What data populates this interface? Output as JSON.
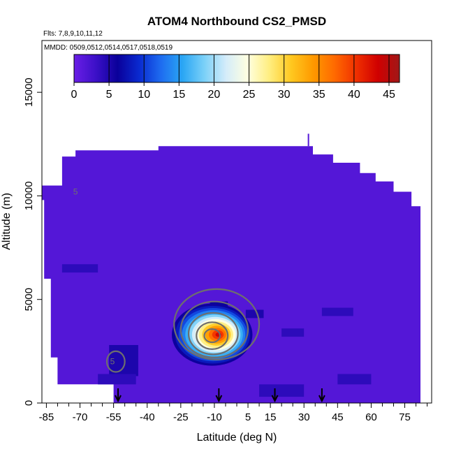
{
  "chart_data": {
    "type": "heatmap",
    "title": "ATOM4 Northbound CS2_PMSD",
    "notes": [
      "Flts: 7,8,9,10,11,12",
      "MMDD: 0509,0512,0514,0517,0518,0519"
    ],
    "xlabel": "Latitude (deg N)",
    "ylabel": "Altitude (m)",
    "xlim": [
      -87,
      87
    ],
    "ylim": [
      0,
      17500
    ],
    "x_ticks": [
      -85,
      -70,
      -55,
      -40,
      -25,
      -10,
      5,
      15,
      30,
      45,
      60,
      75
    ],
    "x_tick_labels": [
      "-85",
      "-70",
      "-55",
      "-40",
      "-25",
      "-10",
      "5",
      "15",
      "30",
      "45",
      "60",
      "75"
    ],
    "x_minor_ticks": [
      -80,
      -75,
      -65,
      -60,
      -50,
      -45,
      -35,
      -30,
      -20,
      -15,
      -5,
      0,
      10,
      20,
      25,
      35,
      40,
      50,
      55,
      65,
      70,
      80,
      85
    ],
    "y_ticks": [
      0,
      5000,
      10000,
      15000
    ],
    "y_tick_labels": [
      "0",
      "5000",
      "10000",
      "15000"
    ],
    "colorbar": {
      "ticks": [
        0,
        5,
        10,
        15,
        20,
        25,
        30,
        35,
        40,
        45
      ],
      "tick_labels": [
        "0",
        "5",
        "10",
        "15",
        "20",
        "25",
        "30",
        "35",
        "40",
        "45"
      ],
      "range": [
        0,
        46.5
      ],
      "colors": [
        "#6a1ee6",
        "#3c10c8",
        "#0a009a",
        "#0a2ad0",
        "#1e6cf0",
        "#2aa6f4",
        "#7ad0f8",
        "#d4ecfa",
        "#ffffe0",
        "#ffee80",
        "#ffc820",
        "#ff9a00",
        "#ff6a00",
        "#f03000",
        "#d00000",
        "#a01818"
      ]
    },
    "background_value": 1.5,
    "domain_outline": [
      [
        -87,
        9800
      ],
      [
        -87,
        10500
      ],
      [
        -78,
        10500
      ],
      [
        -78,
        11900
      ],
      [
        -72,
        11900
      ],
      [
        -72,
        12200
      ],
      [
        -35,
        12200
      ],
      [
        -35,
        12400
      ],
      [
        34,
        12400
      ],
      [
        34,
        12000
      ],
      [
        43,
        12000
      ],
      [
        43,
        11600
      ],
      [
        55,
        11600
      ],
      [
        55,
        11100
      ],
      [
        62,
        11100
      ],
      [
        62,
        10700
      ],
      [
        70,
        10700
      ],
      [
        70,
        10200
      ],
      [
        78,
        10200
      ],
      [
        78,
        9500
      ],
      [
        82,
        9500
      ],
      [
        82,
        0
      ],
      [
        -55,
        0
      ],
      [
        -55,
        900
      ],
      [
        -80,
        900
      ],
      [
        -80,
        2200
      ],
      [
        -83,
        2200
      ],
      [
        -83,
        6000
      ],
      [
        -86,
        6000
      ],
      [
        -86,
        9800
      ]
    ],
    "cells": [
      {
        "x": [
          -57,
          -44
        ],
        "y": [
          1300,
          2800
        ],
        "value": 5
      },
      {
        "x": [
          -62,
          -45
        ],
        "y": [
          900,
          1400
        ],
        "value": 4
      },
      {
        "x": [
          -12,
          -4
        ],
        "y": [
          4000,
          4900
        ],
        "value": 6
      },
      {
        "x": [
          4,
          12
        ],
        "y": [
          4100,
          4500
        ],
        "value": 5
      },
      {
        "x": [
          20,
          30
        ],
        "y": [
          3200,
          3600
        ],
        "value": 4
      },
      {
        "x": [
          38,
          52
        ],
        "y": [
          4200,
          4600
        ],
        "value": 4
      },
      {
        "x": [
          45,
          60
        ],
        "y": [
          900,
          1400
        ],
        "value": 4
      },
      {
        "x": [
          10,
          30
        ],
        "y": [
          300,
          900
        ],
        "value": 4
      },
      {
        "x": [
          -78,
          -62
        ],
        "y": [
          6300,
          6700
        ],
        "value": 4
      }
    ],
    "plume": {
      "center": [
        -11,
        3300
      ],
      "radius_x": 18,
      "radius_y": 1500,
      "peak": 43,
      "floor": 6
    },
    "contours": [
      {
        "center": [
          -9,
          3800
        ],
        "rx": 19,
        "ry": 1700
      },
      {
        "center": [
          -10,
          3550
        ],
        "rx": 15,
        "ry": 1350
      },
      {
        "center": [
          -10.5,
          3350
        ],
        "rx": 11,
        "ry": 1000
      },
      {
        "center": [
          -11,
          3250
        ],
        "rx": 7,
        "ry": 650
      },
      {
        "center": [
          -11,
          3250
        ],
        "rx": 3.5,
        "ry": 320
      },
      {
        "center": [
          -54,
          2000
        ],
        "rx": 4,
        "ry": 500
      }
    ],
    "contour_labels": [
      {
        "x": -55.5,
        "y": 2000,
        "text": "5"
      },
      {
        "x": -72,
        "y": 10200,
        "text": "5"
      }
    ],
    "arrows_x": [
      -53,
      -8,
      17,
      38
    ],
    "top_spike_x": 32
  }
}
